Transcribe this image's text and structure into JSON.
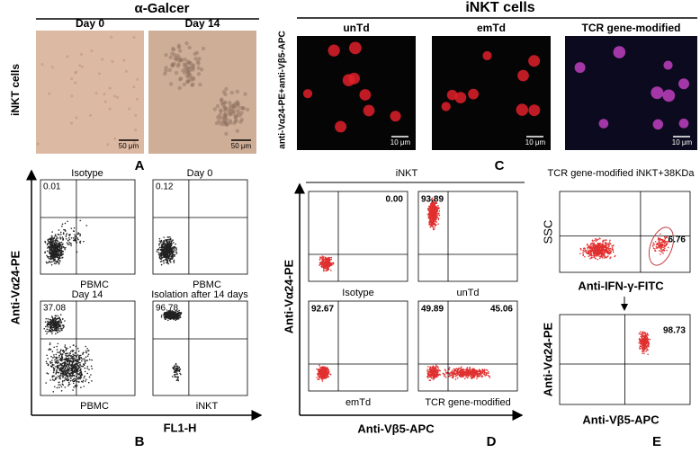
{
  "panel_a": {
    "title": "α-Galcer",
    "row_label": "iNKT cells",
    "images": [
      {
        "label": "Day 0",
        "scale": "50 μm"
      },
      {
        "label": "Day 14",
        "scale": "50 μm"
      }
    ],
    "letter": "A"
  },
  "panel_c": {
    "title": "iNKT cells",
    "row_label": "anti-Vα24-PE+anti-Vβ5-APC",
    "images": [
      {
        "label": "unTd",
        "scale": "10 μm"
      },
      {
        "label": "emTd",
        "scale": "10 μm"
      },
      {
        "label": "TCR gene-modified",
        "scale": "10 μm"
      }
    ],
    "letter": "C"
  },
  "panel_b": {
    "y_label": "Anti-Vα24-PE",
    "x_label": "FL1-H",
    "plots": [
      {
        "title": "Isotype",
        "x_label": "PBMC",
        "value": "0.01"
      },
      {
        "title": "Day 0",
        "x_label": "PBMC",
        "value": "0.12"
      },
      {
        "title": "Day 14",
        "x_label": "PBMC",
        "value": "37.08"
      },
      {
        "title": "Isolation after 14 days",
        "x_label": "iNKT",
        "value": "96.78"
      }
    ],
    "letter": "B"
  },
  "panel_d": {
    "title": "iNKT",
    "y_label": "Anti-Vα24-PE",
    "x_label": "Anti-Vβ5-APC",
    "plots": [
      {
        "label": "Isotype",
        "values": [
          "0.00"
        ]
      },
      {
        "label": "unTd",
        "values": [
          "93.89"
        ]
      },
      {
        "label": "emTd",
        "values": [
          "92.67"
        ]
      },
      {
        "label": "TCR gene-modified",
        "values": [
          "49.89",
          "45.06"
        ]
      }
    ],
    "letter": "D"
  },
  "panel_e": {
    "title": "TCR gene-modified iNKT+38KDa",
    "plots": [
      {
        "y_label": "SSC",
        "x_label": "Anti-IFN-γ-FITC",
        "value": "6.76"
      },
      {
        "y_label": "Anti-Vα24-PE",
        "x_label": "Anti-Vβ5-APC",
        "value": "98.73"
      }
    ],
    "letter": "E"
  }
}
